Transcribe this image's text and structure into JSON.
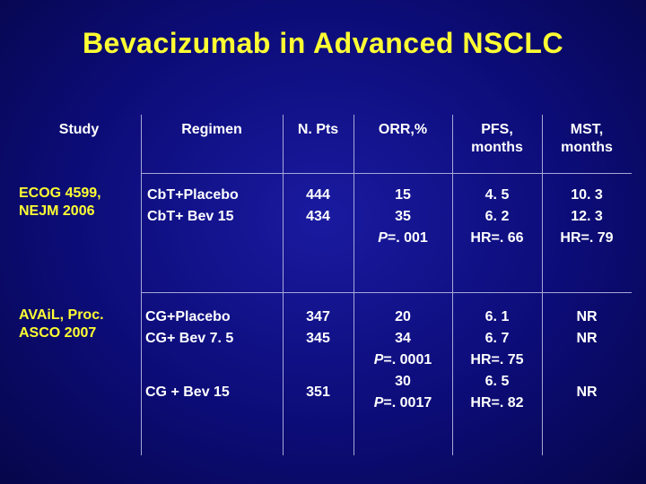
{
  "title": "Bevacizumab in Advanced NSCLC",
  "headers": {
    "study": "Study",
    "regimen": "Regimen",
    "npts": "N. Pts",
    "orr": "ORR,%",
    "pfs": [
      "PFS,",
      "months"
    ],
    "mst": [
      "MST,",
      "months"
    ]
  },
  "rows": [
    {
      "study": [
        "ECOG 4599,",
        "NEJM 2006"
      ],
      "regimen": [
        "CbT+Placebo",
        "CbT+ Bev 15"
      ],
      "npts": [
        "444",
        "434"
      ],
      "orr": [
        "15",
        "35"
      ],
      "orr_p": {
        "p": "P",
        "val": "=. 001"
      },
      "pfs": [
        "4. 5",
        "6. 2",
        "HR=. 66"
      ],
      "mst": [
        "10. 3",
        "12. 3",
        "HR=. 79"
      ]
    },
    {
      "study": [
        "AVAiL, Proc.",
        "ASCO 2007"
      ],
      "regimen": [
        "CG+Placebo",
        "CG+ Bev 7. 5"
      ],
      "npts": [
        "347",
        "345"
      ],
      "orr": [
        "20",
        "34"
      ],
      "orr_p": {
        "p": "P",
        "val": "=. 0001"
      },
      "pfs": [
        "6. 1",
        "6. 7",
        "HR=. 75"
      ],
      "mst": [
        "NR",
        "NR"
      ],
      "sub": {
        "regimen": "CG + Bev 15",
        "npts": "351",
        "orr": "30",
        "orr_p": {
          "p": "P",
          "val": "=. 0017"
        },
        "pfs": [
          "6. 5",
          "HR=. 82"
        ],
        "mst": "NR"
      }
    }
  ]
}
